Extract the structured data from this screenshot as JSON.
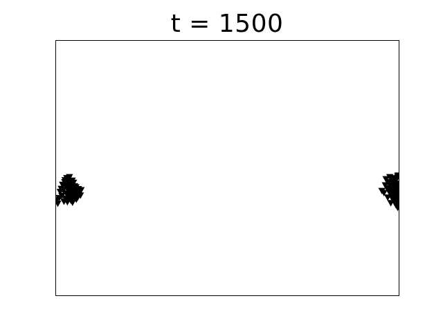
{
  "chart_data": {
    "type": "scatter",
    "title": "t = 1500",
    "xlabel": "",
    "ylabel": "",
    "xlim": [
      0,
      100
    ],
    "ylim": [
      0,
      100
    ],
    "grid": false,
    "show_ticks": false,
    "marker": "triangle-down",
    "marker_color": "#000000",
    "frame_color": "#000000",
    "series": [
      {
        "points": [
          [
            0.2,
            37.6
          ],
          [
            0.6,
            36.2
          ],
          [
            1.0,
            38.4
          ],
          [
            1.3,
            40.8
          ],
          [
            1.6,
            42.0
          ],
          [
            1.8,
            39.2
          ],
          [
            2.0,
            43.6
          ],
          [
            2.2,
            41.4
          ],
          [
            2.4,
            37.0
          ],
          [
            2.6,
            44.6
          ],
          [
            2.7,
            45.4
          ],
          [
            2.8,
            38.2
          ],
          [
            3.0,
            42.8
          ],
          [
            3.1,
            40.2
          ],
          [
            3.2,
            46.2
          ],
          [
            3.3,
            44.0
          ],
          [
            3.4,
            36.8
          ],
          [
            3.5,
            41.8
          ],
          [
            3.6,
            39.6
          ],
          [
            3.7,
            45.8
          ],
          [
            3.8,
            43.2
          ],
          [
            3.9,
            38.0
          ],
          [
            4.0,
            46.6
          ],
          [
            4.1,
            40.6
          ],
          [
            4.2,
            42.4
          ],
          [
            4.3,
            44.8
          ],
          [
            4.4,
            37.4
          ],
          [
            4.5,
            41.0
          ],
          [
            4.6,
            39.0
          ],
          [
            4.7,
            43.8
          ],
          [
            4.8,
            45.2
          ],
          [
            4.9,
            36.6
          ],
          [
            5.0,
            42.2
          ],
          [
            5.1,
            40.0
          ],
          [
            5.2,
            44.4
          ],
          [
            5.3,
            38.8
          ],
          [
            5.4,
            41.6
          ],
          [
            5.5,
            43.0
          ],
          [
            5.7,
            39.8
          ],
          [
            5.9,
            42.6
          ],
          [
            6.1,
            41.2
          ],
          [
            6.3,
            40.4
          ],
          [
            6.6,
            41.9
          ],
          [
            7.0,
            40.9
          ],
          [
            7.4,
            41.5
          ],
          [
            6.0,
            37.8
          ],
          [
            6.4,
            38.6
          ],
          [
            7.2,
            39.4
          ]
        ]
      },
      {
        "points": [
          [
            95.0,
            41.2
          ],
          [
            95.6,
            40.4
          ],
          [
            96.0,
            43.4
          ],
          [
            96.2,
            45.8
          ],
          [
            96.5,
            42.2
          ],
          [
            96.7,
            38.6
          ],
          [
            96.9,
            44.6
          ],
          [
            97.1,
            40.8
          ],
          [
            97.3,
            46.6
          ],
          [
            97.5,
            43.0
          ],
          [
            97.6,
            36.4
          ],
          [
            97.7,
            41.6
          ],
          [
            97.8,
            39.4
          ],
          [
            97.9,
            44.2
          ],
          [
            98.0,
            45.2
          ],
          [
            98.1,
            38.0
          ],
          [
            98.2,
            42.6
          ],
          [
            98.3,
            40.2
          ],
          [
            98.4,
            46.2
          ],
          [
            98.5,
            43.8
          ],
          [
            98.6,
            37.2
          ],
          [
            98.7,
            41.0
          ],
          [
            98.8,
            39.0
          ],
          [
            98.9,
            44.8
          ],
          [
            99.0,
            42.0
          ],
          [
            99.1,
            35.6
          ],
          [
            99.2,
            45.6
          ],
          [
            99.3,
            40.6
          ],
          [
            99.4,
            43.2
          ],
          [
            99.5,
            38.4
          ],
          [
            99.6,
            46.8
          ],
          [
            99.7,
            41.4
          ],
          [
            99.8,
            36.8
          ],
          [
            99.9,
            44.0
          ],
          [
            99.9,
            39.8
          ],
          [
            99.6,
            34.6
          ],
          [
            99.8,
            42.8
          ],
          [
            99.3,
            37.6
          ],
          [
            99.7,
            47.2
          ],
          [
            99.9,
            40.0
          ]
        ]
      }
    ]
  }
}
